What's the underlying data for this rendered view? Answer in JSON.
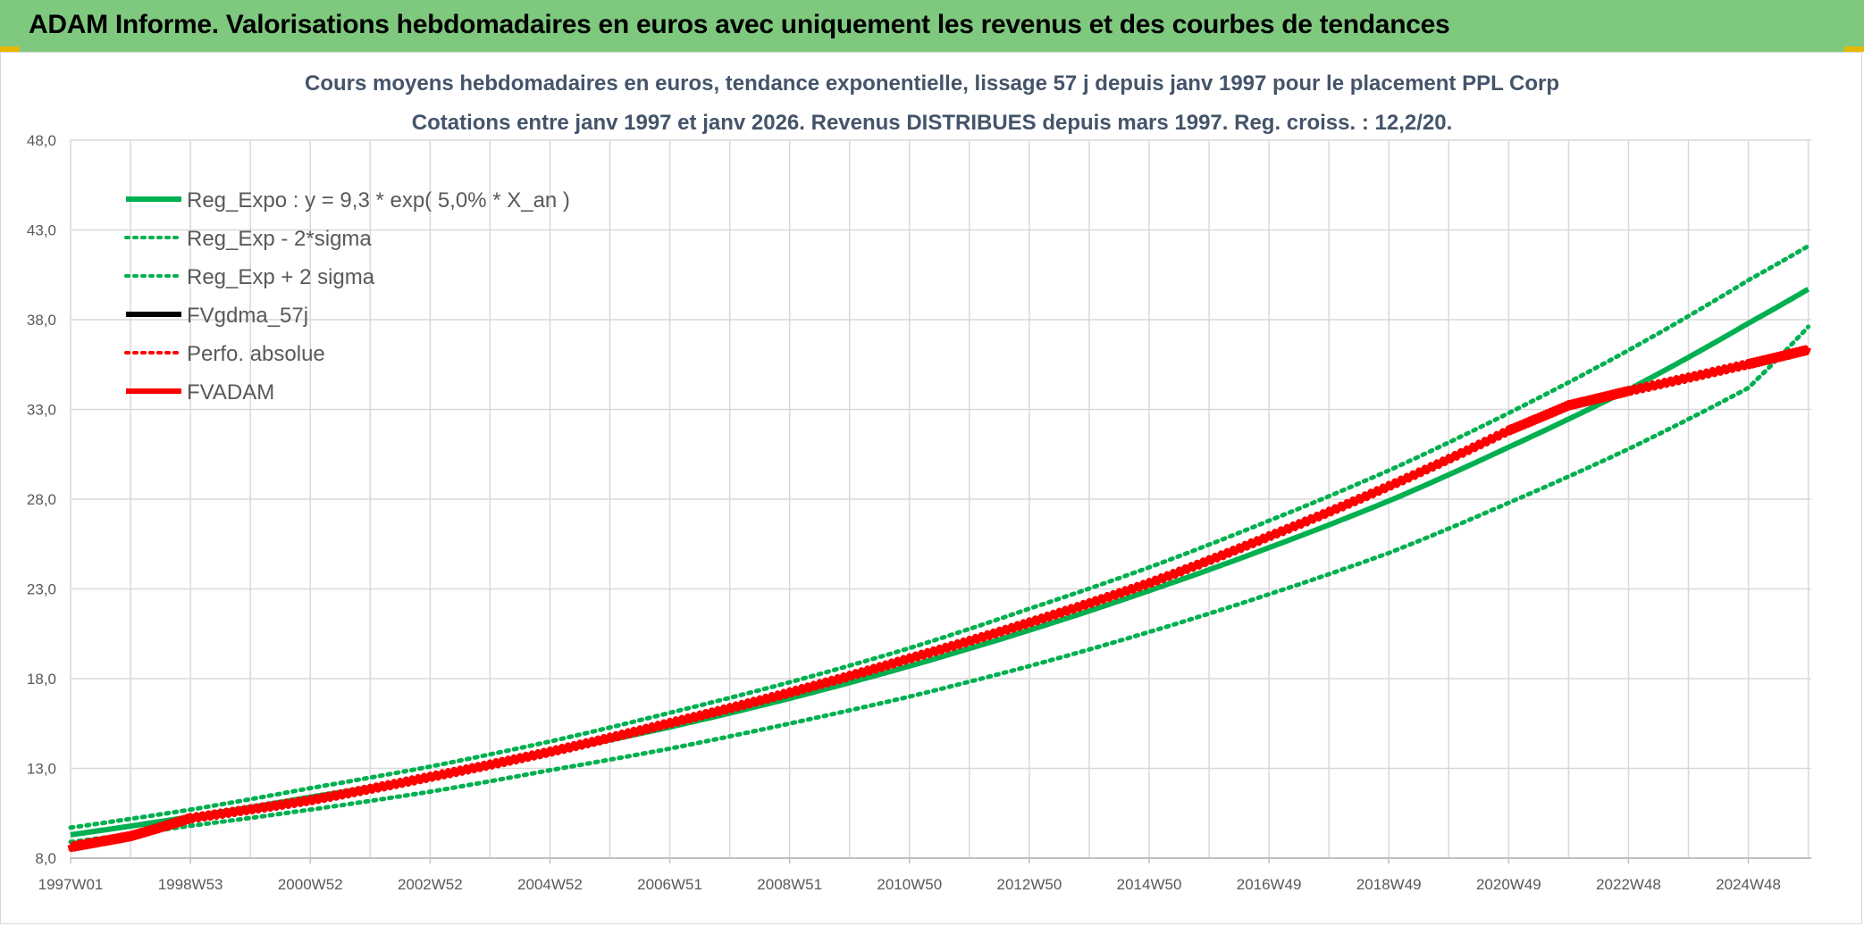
{
  "header": {
    "title": "ADAM Informe. Valorisations hebdomadaires en euros avec uniquement les revenus et des courbes de tendances"
  },
  "colors": {
    "banner": "#7fc97f",
    "trend": "#00b050",
    "fvadam": "#ff0000",
    "fvgdma": "#000000",
    "grid": "#d9d9d9"
  },
  "chart_data": {
    "type": "line",
    "title": "Cours moyens hebdomadaires en euros, tendance exponentielle, lissage 57 j depuis janv 1997 pour le placement PPL Corp",
    "subtitle": "Cotations entre janv 1997 et janv 2026. Revenus DISTRIBUES depuis mars 1997. Reg. croiss. : 12,2/20.",
    "xlabel": "",
    "ylabel": "",
    "ylim": [
      8,
      48
    ],
    "ytick_values": [
      8,
      13,
      18,
      23,
      28,
      33,
      38,
      43,
      48
    ],
    "yticks": [
      "8,0",
      "13,0",
      "18,0",
      "23,0",
      "28,0",
      "33,0",
      "38,0",
      "43,0",
      "48,0"
    ],
    "xlim": [
      1997.0,
      2026.05
    ],
    "xticks": [
      {
        "label": "1997W01",
        "x": 1997.0
      },
      {
        "label": "1998W53",
        "x": 1999.0
      },
      {
        "label": "2000W52",
        "x": 2001.0
      },
      {
        "label": "2002W52",
        "x": 2003.0
      },
      {
        "label": "2004W52",
        "x": 2005.0
      },
      {
        "label": "2006W51",
        "x": 2007.0
      },
      {
        "label": "2008W51",
        "x": 2009.0
      },
      {
        "label": "2010W50",
        "x": 2011.0
      },
      {
        "label": "2012W50",
        "x": 2013.0
      },
      {
        "label": "2014W50",
        "x": 2015.0
      },
      {
        "label": "2016W49",
        "x": 2017.0
      },
      {
        "label": "2018W49",
        "x": 2019.0
      },
      {
        "label": "2020W49",
        "x": 2021.0
      },
      {
        "label": "2022W48",
        "x": 2023.0
      },
      {
        "label": "2024W48",
        "x": 2025.0
      }
    ],
    "grid": true,
    "legend_position": "top-left",
    "series": [
      {
        "name": "Reg_Expo : y = 9,3 * exp( 5,0% *  X_an )",
        "style": "solid",
        "color": "#00b050",
        "width": 6,
        "x": [
          1997,
          1999,
          2001,
          2003,
          2005,
          2007,
          2009,
          2011,
          2013,
          2015,
          2017,
          2019,
          2021,
          2023,
          2025,
          2026
        ],
        "y": [
          9.3,
          10.3,
          11.4,
          12.5,
          13.9,
          15.3,
          16.9,
          18.7,
          20.7,
          22.9,
          25.3,
          27.9,
          30.9,
          34.1,
          37.8,
          39.7
        ]
      },
      {
        "name": "Reg_Exp - 2*sigma",
        "style": "dotted",
        "color": "#00b050",
        "width": 5,
        "x": [
          1997,
          1999,
          2001,
          2003,
          2005,
          2007,
          2009,
          2011,
          2013,
          2015,
          2017,
          2019,
          2021,
          2023,
          2025,
          2026
        ],
        "y": [
          8.9,
          9.8,
          10.7,
          11.7,
          12.9,
          14.1,
          15.5,
          17.0,
          18.7,
          20.6,
          22.7,
          25.0,
          27.8,
          30.8,
          34.2,
          37.6
        ]
      },
      {
        "name": "Reg_Exp + 2 sigma",
        "style": "dotted",
        "color": "#00b050",
        "width": 5,
        "x": [
          1997,
          1999,
          2001,
          2003,
          2005,
          2007,
          2009,
          2011,
          2013,
          2015,
          2017,
          2019,
          2021,
          2023,
          2025,
          2026
        ],
        "y": [
          9.7,
          10.7,
          11.9,
          13.1,
          14.5,
          16.1,
          17.8,
          19.7,
          21.9,
          24.2,
          26.8,
          29.6,
          32.8,
          36.3,
          40.2,
          42.1
        ]
      },
      {
        "name": "FVgdma_57j",
        "style": "solid",
        "color": "#000000",
        "width": 4,
        "x": [],
        "y": []
      },
      {
        "name": "Perfo. absolue",
        "style": "dotted",
        "color": "#ff0000",
        "width": 4,
        "x": [],
        "y": []
      },
      {
        "name": "FVADAM",
        "style": "solid",
        "color": "#ff0000",
        "width": 7,
        "x": [
          1997,
          1998,
          1999,
          2001,
          2003,
          2005,
          2007,
          2009,
          2011,
          2013,
          2015,
          2017,
          2019,
          2021,
          2022,
          2023,
          2025,
          2026
        ],
        "y": [
          8.6,
          9.2,
          10.2,
          11.2,
          12.5,
          13.9,
          15.5,
          17.2,
          19.1,
          21.1,
          23.3,
          25.9,
          28.7,
          31.8,
          33.2,
          34.0,
          35.5,
          36.3
        ]
      }
    ]
  }
}
